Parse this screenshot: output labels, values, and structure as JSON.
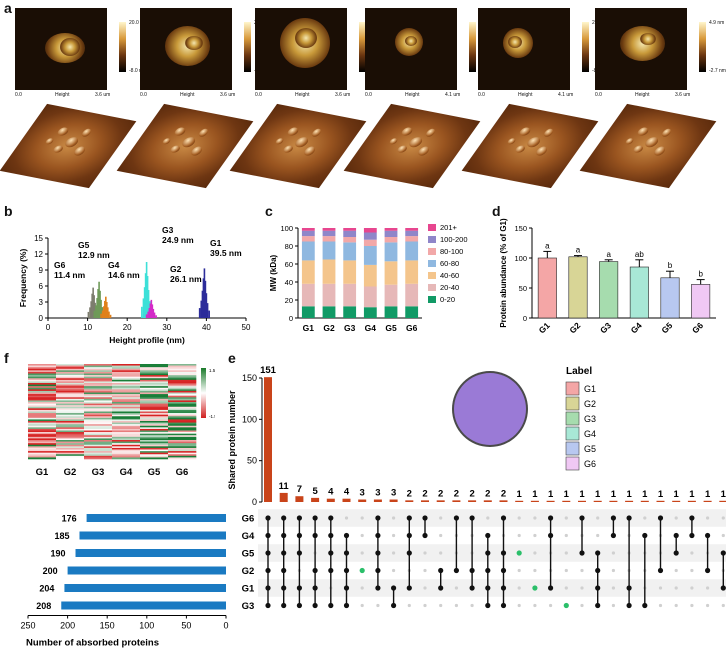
{
  "panel_labels": {
    "a": "a",
    "b": "b",
    "c": "c",
    "d": "d",
    "e": "e",
    "f": "f"
  },
  "afm": {
    "images": [
      {
        "scale_max": "20.0 nm",
        "scale_min": "-8.0 nm",
        "axis_start": "0.0",
        "axis_label": "Height",
        "axis_end": "3.6 um"
      },
      {
        "scale_max": "20.0 nm",
        "scale_min": "-8.0 nm",
        "axis_start": "0.0",
        "axis_label": "Height",
        "axis_end": "3.6 um"
      },
      {
        "scale_max": "20.0 nm",
        "scale_min": "-8.0 nm",
        "axis_start": "0.0",
        "axis_label": "Height",
        "axis_end": "3.6 um"
      },
      {
        "scale_max": "8.0 nm",
        "scale_min": "-3.6 nm",
        "axis_start": "0.0",
        "axis_label": "Height",
        "axis_end": "4.1 um"
      },
      {
        "scale_max": "20.0 nm",
        "scale_min": "-8.0 nm",
        "axis_start": "0.0",
        "axis_label": "Height",
        "axis_end": "4.1 um"
      },
      {
        "scale_max": "4.9 nm",
        "scale_min": "-2.7 nm",
        "axis_start": "0.0",
        "axis_label": "Height",
        "axis_end": "3.6 um"
      }
    ]
  },
  "chart_data": [
    {
      "id": "b",
      "type": "histogram",
      "xlabel": "Height profile (nm)",
      "ylabel": "Frequency (%)",
      "xlim": [
        0,
        50
      ],
      "ylim": [
        0,
        15
      ],
      "xticks": [
        0,
        10,
        20,
        30,
        40,
        50
      ],
      "yticks": [
        0,
        3,
        6,
        9,
        12,
        15
      ],
      "peaks": [
        {
          "group": "G6",
          "height_nm": 11.4,
          "label": "G6\n11.4 nm",
          "freq": 5.7,
          "color": "#7d7d6e"
        },
        {
          "group": "G5",
          "height_nm": 12.9,
          "label": "G5\n12.9 nm",
          "freq": 6.8,
          "color": "#6e9a58"
        },
        {
          "group": "G4",
          "height_nm": 14.6,
          "label": "G4\n14.6 nm",
          "freq": 4.0,
          "color": "#e0801a"
        },
        {
          "group": "G3",
          "height_nm": 24.9,
          "label": "G3\n24.9 nm",
          "freq": 10.5,
          "color": "#3de0d8"
        },
        {
          "group": "G2",
          "height_nm": 26.1,
          "label": "G2\n26.1 nm",
          "freq": 3.4,
          "color": "#d42ac8"
        },
        {
          "group": "G1",
          "height_nm": 39.5,
          "label": "G1\n39.5 nm",
          "freq": 9.3,
          "color": "#2c2c9a"
        }
      ]
    },
    {
      "id": "c",
      "type": "bar",
      "stacked": true,
      "categories": [
        "G1",
        "G2",
        "G3",
        "G4",
        "G5",
        "G6"
      ],
      "ylabel": "MW (kDa)",
      "ylim": [
        0,
        100
      ],
      "yticks": [
        0,
        20,
        40,
        60,
        80,
        100
      ],
      "series": [
        {
          "name": "0-20",
          "color": "#119a66",
          "values": [
            13,
            13,
            13,
            12,
            13,
            13
          ]
        },
        {
          "name": "20-40",
          "color": "#e6b8b8",
          "values": [
            25,
            25,
            25,
            23,
            24,
            25
          ]
        },
        {
          "name": "40-60",
          "color": "#f4c58c",
          "values": [
            26,
            27,
            26,
            24,
            26,
            26
          ]
        },
        {
          "name": "60-80",
          "color": "#8fb8e0",
          "values": [
            21,
            20,
            20,
            21,
            21,
            21
          ]
        },
        {
          "name": "80-100",
          "color": "#f2a8a8",
          "values": [
            6,
            6,
            6,
            7,
            6,
            6
          ]
        },
        {
          "name": "100-200",
          "color": "#8f86c9",
          "values": [
            6,
            6,
            7,
            8,
            7,
            6
          ]
        },
        {
          "name": "201+",
          "color": "#e7468f",
          "values": [
            3,
            3,
            3,
            5,
            3,
            3
          ]
        }
      ]
    },
    {
      "id": "d",
      "type": "bar",
      "categories": [
        "G1",
        "G2",
        "G3",
        "G4",
        "G5",
        "G6"
      ],
      "ylabel": "Protein abundance (% of G1)",
      "ylim": [
        0,
        150
      ],
      "yticks": [
        0,
        50,
        100,
        150
      ],
      "values": [
        100,
        102,
        94,
        85,
        67,
        56
      ],
      "errors": [
        11,
        2,
        3,
        12,
        11,
        8
      ],
      "letters": [
        "a",
        "a",
        "a",
        "ab",
        "b",
        "b"
      ],
      "colors": [
        "#f4a6a6",
        "#d8d596",
        "#a6dcae",
        "#a8e8d6",
        "#b8c8f0",
        "#f0c8f4"
      ]
    },
    {
      "id": "f",
      "type": "heatmap",
      "columns": [
        "G1",
        "G2",
        "G3",
        "G4",
        "G5",
        "G6"
      ],
      "scale_max": "1.5",
      "scale_min": "-1.5"
    },
    {
      "id": "e",
      "type": "upset",
      "ylabel": "Shared protein number",
      "ylim": [
        0,
        150
      ],
      "yticks": [
        0,
        50,
        100,
        150
      ],
      "bar_values": [
        151,
        11,
        7,
        5,
        4,
        4,
        3,
        3,
        3,
        2,
        2,
        2,
        2,
        2,
        2,
        2,
        1,
        1,
        1,
        1,
        1,
        1,
        1,
        1,
        1,
        1,
        1,
        1,
        1,
        1
      ],
      "bar_color": "#c9441a",
      "sets": [
        "G6",
        "G4",
        "G5",
        "G2",
        "G1",
        "G3"
      ],
      "set_sizes": [
        176,
        185,
        190,
        200,
        204,
        208
      ],
      "set_bar_color": "#1a7ac2",
      "set_axis_label": "Number of absorbed proteins",
      "set_axis_ticks": [
        250,
        200,
        150,
        100,
        50,
        0
      ],
      "legend_title": "Label",
      "legend": [
        {
          "name": "G1",
          "color": "#f4a6a6"
        },
        {
          "name": "G2",
          "color": "#d8d596"
        },
        {
          "name": "G3",
          "color": "#a6dcae"
        },
        {
          "name": "G4",
          "color": "#a8e8d6"
        },
        {
          "name": "G5",
          "color": "#b8c8f0"
        },
        {
          "name": "G6",
          "color": "#f0c8f4"
        }
      ],
      "venn_color": "#9a7ad6",
      "matrix": [
        [
          0,
          1,
          2,
          3,
          4,
          5
        ],
        [
          0,
          1,
          2,
          3,
          4,
          5
        ],
        [
          0,
          1,
          2,
          4,
          5
        ],
        [
          0,
          1,
          3,
          4,
          5
        ],
        [
          0,
          1,
          2,
          3,
          5
        ],
        [
          1,
          2,
          3,
          4,
          5
        ],
        [
          3
        ],
        [
          0,
          1,
          2,
          3,
          4
        ],
        [
          4,
          5
        ],
        [
          0,
          1,
          2,
          4
        ],
        [
          0,
          1
        ],
        [
          3,
          4
        ],
        [
          0,
          3
        ],
        [
          0,
          3,
          4
        ],
        [
          1,
          2,
          3,
          4,
          5
        ],
        [
          0,
          2,
          3,
          4,
          5
        ],
        [
          2
        ],
        [
          4
        ],
        [
          0,
          1,
          4
        ],
        [
          5
        ],
        [
          0,
          2
        ],
        [
          2,
          3,
          4,
          5
        ],
        [
          0,
          1
        ],
        [
          0,
          4,
          5
        ],
        [
          1,
          5
        ],
        [
          0,
          3
        ],
        [
          1,
          2
        ],
        [
          0,
          1
        ],
        [
          1,
          3
        ],
        [
          2,
          4
        ]
      ],
      "single_green": [
        6,
        16,
        17,
        19
      ]
    }
  ]
}
